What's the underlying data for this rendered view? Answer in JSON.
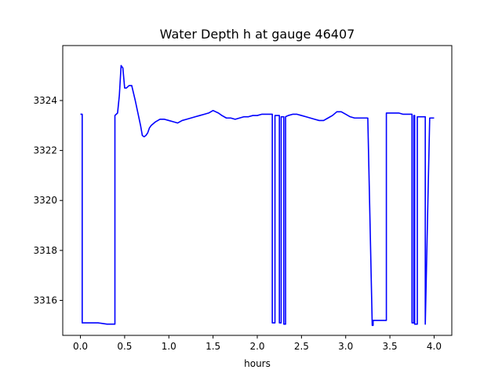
{
  "chart_data": {
    "type": "line",
    "title": "Water Depth h at gauge 46407",
    "xlabel": "hours",
    "ylabel": "",
    "xlim": [
      -0.2,
      4.2
    ],
    "ylim": [
      3314.6,
      3326.2
    ],
    "xticks": [
      0.0,
      0.5,
      1.0,
      1.5,
      2.0,
      2.5,
      3.0,
      3.5,
      4.0
    ],
    "xtick_labels": [
      "0.0",
      "0.5",
      "1.0",
      "1.5",
      "2.0",
      "2.5",
      "3.0",
      "3.5",
      "4.0"
    ],
    "yticks": [
      3316,
      3318,
      3320,
      3322,
      3324
    ],
    "ytick_labels": [
      "3316",
      "3318",
      "3320",
      "3322",
      "3324"
    ],
    "grid": false,
    "series": [
      {
        "color": "#0000ff",
        "x": [
          0.0,
          0.02,
          0.02,
          0.1,
          0.2,
          0.3,
          0.39,
          0.39,
          0.42,
          0.44,
          0.46,
          0.48,
          0.5,
          0.52,
          0.55,
          0.58,
          0.6,
          0.62,
          0.65,
          0.68,
          0.7,
          0.72,
          0.74,
          0.76,
          0.78,
          0.8,
          0.85,
          0.9,
          0.95,
          1.0,
          1.05,
          1.1,
          1.15,
          1.2,
          1.25,
          1.3,
          1.35,
          1.4,
          1.45,
          1.5,
          1.53,
          1.56,
          1.6,
          1.65,
          1.7,
          1.75,
          1.8,
          1.85,
          1.9,
          1.95,
          2.0,
          2.05,
          2.1,
          2.15,
          2.17,
          2.17,
          2.2,
          2.2,
          2.25,
          2.25,
          2.27,
          2.27,
          2.3,
          2.3,
          2.32,
          2.32,
          2.35,
          2.35,
          2.4,
          2.45,
          2.5,
          2.55,
          2.6,
          2.65,
          2.7,
          2.75,
          2.8,
          2.85,
          2.9,
          2.95,
          3.0,
          3.05,
          3.1,
          3.15,
          3.2,
          3.25,
          3.3,
          3.31,
          3.31,
          3.4,
          3.46,
          3.46,
          3.5,
          3.55,
          3.6,
          3.65,
          3.7,
          3.75,
          3.75,
          3.77,
          3.77,
          3.78,
          3.78,
          3.81,
          3.81,
          3.9,
          3.9,
          3.95,
          4.0
        ],
        "y": [
          3323.45,
          3323.45,
          3315.1,
          3315.1,
          3315.1,
          3315.05,
          3315.05,
          3323.4,
          3323.5,
          3324.2,
          3325.4,
          3325.3,
          3324.5,
          3324.5,
          3324.6,
          3324.6,
          3324.3,
          3324.0,
          3323.5,
          3323.0,
          3322.6,
          3322.55,
          3322.6,
          3322.7,
          3322.9,
          3323.0,
          3323.15,
          3323.25,
          3323.25,
          3323.2,
          3323.15,
          3323.1,
          3323.2,
          3323.25,
          3323.3,
          3323.35,
          3323.4,
          3323.45,
          3323.5,
          3323.6,
          3323.55,
          3323.5,
          3323.4,
          3323.3,
          3323.3,
          3323.25,
          3323.3,
          3323.35,
          3323.35,
          3323.4,
          3323.4,
          3323.45,
          3323.45,
          3323.45,
          3323.45,
          3315.1,
          3315.1,
          3323.4,
          3323.4,
          3315.1,
          3315.1,
          3323.35,
          3323.35,
          3315.05,
          3315.05,
          3323.35,
          3323.4,
          3323.4,
          3323.45,
          3323.45,
          3323.4,
          3323.35,
          3323.3,
          3323.25,
          3323.2,
          3323.2,
          3323.3,
          3323.4,
          3323.55,
          3323.55,
          3323.45,
          3323.35,
          3323.3,
          3323.3,
          3323.3,
          3323.3,
          3315.0,
          3315.0,
          3315.2,
          3315.2,
          3315.2,
          3323.5,
          3323.5,
          3323.5,
          3323.5,
          3323.45,
          3323.45,
          3323.45,
          3315.1,
          3315.1,
          3323.4,
          3323.4,
          3315.05,
          3315.05,
          3323.35,
          3323.35,
          3315.05,
          3323.3,
          3323.3
        ]
      }
    ]
  }
}
